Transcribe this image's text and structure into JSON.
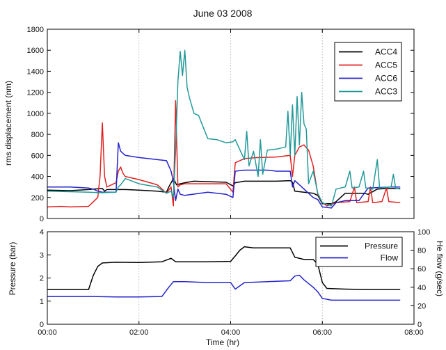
{
  "chart_data": [
    {
      "type": "line",
      "title": "June 03 2008",
      "xlabel": "",
      "ylabel": "rms displacement (nm)",
      "xlim": [
        0,
        8
      ],
      "ylim": [
        0,
        1800
      ],
      "xgrid": true,
      "ygrid": false,
      "yticks": [
        "0",
        "200",
        "400",
        "600",
        "800",
        "1000",
        "1200",
        "1400",
        "1600",
        "1800"
      ],
      "legend_position": "top-right",
      "series": [
        {
          "name": "ACC4",
          "color": "#000000",
          "points": [
            [
              0,
              270
            ],
            [
              0.5,
              265
            ],
            [
              0.9,
              275
            ],
            [
              1.0,
              280
            ],
            [
              1.2,
              285
            ],
            [
              1.25,
              260
            ],
            [
              1.3,
              275
            ],
            [
              1.5,
              275
            ],
            [
              1.7,
              275
            ],
            [
              2.0,
              270
            ],
            [
              2.4,
              260
            ],
            [
              2.6,
              250
            ],
            [
              2.65,
              300
            ],
            [
              2.75,
              380
            ],
            [
              2.82,
              320
            ],
            [
              2.9,
              330
            ],
            [
              3.0,
              340
            ],
            [
              3.2,
              355
            ],
            [
              3.5,
              350
            ],
            [
              3.9,
              345
            ],
            [
              4.05,
              310
            ],
            [
              4.1,
              340
            ],
            [
              4.3,
              355
            ],
            [
              4.8,
              355
            ],
            [
              5.0,
              355
            ],
            [
              5.3,
              360
            ],
            [
              5.35,
              345
            ],
            [
              5.4,
              260
            ],
            [
              5.6,
              250
            ],
            [
              5.8,
              240
            ],
            [
              5.9,
              220
            ],
            [
              6.0,
              140
            ],
            [
              6.2,
              140
            ],
            [
              6.3,
              160
            ],
            [
              6.5,
              240
            ],
            [
              6.9,
              240
            ],
            [
              7.0,
              230
            ],
            [
              7.2,
              280
            ],
            [
              7.4,
              285
            ],
            [
              7.5,
              285
            ],
            [
              7.7,
              285
            ]
          ]
        },
        {
          "name": "ACC5",
          "color": "#e02020",
          "points": [
            [
              0,
              110
            ],
            [
              0.3,
              115
            ],
            [
              0.5,
              110
            ],
            [
              0.9,
              115
            ],
            [
              1.1,
              200
            ],
            [
              1.15,
              400
            ],
            [
              1.2,
              910
            ],
            [
              1.25,
              400
            ],
            [
              1.3,
              300
            ],
            [
              1.5,
              340
            ],
            [
              1.55,
              450
            ],
            [
              1.6,
              490
            ],
            [
              1.65,
              430
            ],
            [
              1.7,
              400
            ],
            [
              2.0,
              370
            ],
            [
              2.4,
              320
            ],
            [
              2.6,
              240
            ],
            [
              2.7,
              300
            ],
            [
              2.75,
              120
            ],
            [
              2.8,
              1120
            ],
            [
              2.85,
              300
            ],
            [
              2.9,
              320
            ],
            [
              3.0,
              330
            ],
            [
              3.5,
              330
            ],
            [
              3.9,
              330
            ],
            [
              4.05,
              250
            ],
            [
              4.1,
              530
            ],
            [
              4.3,
              570
            ],
            [
              4.6,
              580
            ],
            [
              5.0,
              585
            ],
            [
              5.3,
              600
            ],
            [
              5.35,
              400
            ],
            [
              5.4,
              600
            ],
            [
              5.5,
              680
            ],
            [
              5.6,
              700
            ],
            [
              5.7,
              650
            ],
            [
              5.8,
              500
            ],
            [
              5.9,
              230
            ],
            [
              6.0,
              150
            ],
            [
              6.1,
              120
            ],
            [
              6.3,
              150
            ],
            [
              6.6,
              160
            ],
            [
              6.7,
              300
            ],
            [
              6.75,
              150
            ],
            [
              7.0,
              160
            ],
            [
              7.05,
              300
            ],
            [
              7.1,
              150
            ],
            [
              7.3,
              160
            ],
            [
              7.4,
              290
            ],
            [
              7.45,
              160
            ],
            [
              7.7,
              150
            ]
          ]
        },
        {
          "name": "ACC6",
          "color": "#2222cc",
          "points": [
            [
              0,
              300
            ],
            [
              0.5,
              300
            ],
            [
              0.9,
              290
            ],
            [
              1.0,
              280
            ],
            [
              1.1,
              260
            ],
            [
              1.2,
              250
            ],
            [
              1.5,
              250
            ],
            [
              1.55,
              720
            ],
            [
              1.6,
              640
            ],
            [
              1.7,
              600
            ],
            [
              2.0,
              580
            ],
            [
              2.4,
              560
            ],
            [
              2.6,
              550
            ],
            [
              2.7,
              450
            ],
            [
              2.75,
              350
            ],
            [
              2.8,
              170
            ],
            [
              2.85,
              280
            ],
            [
              2.9,
              230
            ],
            [
              3.0,
              220
            ],
            [
              3.5,
              250
            ],
            [
              3.9,
              230
            ],
            [
              4.05,
              200
            ],
            [
              4.1,
              450
            ],
            [
              4.3,
              460
            ],
            [
              4.8,
              460
            ],
            [
              5.0,
              450
            ],
            [
              5.3,
              450
            ],
            [
              5.35,
              300
            ],
            [
              5.4,
              360
            ],
            [
              5.6,
              280
            ],
            [
              5.8,
              200
            ],
            [
              5.9,
              180
            ],
            [
              6.0,
              110
            ],
            [
              6.2,
              100
            ],
            [
              6.3,
              150
            ],
            [
              6.5,
              170
            ],
            [
              6.8,
              170
            ],
            [
              7.0,
              290
            ],
            [
              7.5,
              300
            ],
            [
              7.7,
              300
            ]
          ]
        },
        {
          "name": "ACC3",
          "color": "#229999",
          "points": [
            [
              0,
              260
            ],
            [
              0.5,
              255
            ],
            [
              0.9,
              250
            ],
            [
              1.2,
              245
            ],
            [
              1.5,
              250
            ],
            [
              1.55,
              300
            ],
            [
              1.6,
              320
            ],
            [
              1.7,
              380
            ],
            [
              2.0,
              330
            ],
            [
              2.4,
              300
            ],
            [
              2.6,
              240
            ],
            [
              2.7,
              260
            ],
            [
              2.75,
              200
            ],
            [
              2.8,
              650
            ],
            [
              2.85,
              1300
            ],
            [
              2.9,
              1590
            ],
            [
              2.95,
              1360
            ],
            [
              3.0,
              1600
            ],
            [
              3.05,
              1250
            ],
            [
              3.1,
              1150
            ],
            [
              3.2,
              1000
            ],
            [
              3.3,
              980
            ],
            [
              3.5,
              760
            ],
            [
              3.7,
              750
            ],
            [
              3.9,
              720
            ],
            [
              4.05,
              730
            ],
            [
              4.1,
              750
            ],
            [
              4.3,
              560
            ],
            [
              4.35,
              830
            ],
            [
              4.4,
              500
            ],
            [
              4.5,
              640
            ],
            [
              4.6,
              400
            ],
            [
              4.65,
              750
            ],
            [
              4.7,
              420
            ],
            [
              4.8,
              650
            ],
            [
              5.0,
              660
            ],
            [
              5.2,
              680
            ],
            [
              5.25,
              1020
            ],
            [
              5.3,
              600
            ],
            [
              5.35,
              1080
            ],
            [
              5.4,
              600
            ],
            [
              5.45,
              1160
            ],
            [
              5.5,
              700
            ],
            [
              5.55,
              1200
            ],
            [
              5.6,
              900
            ],
            [
              5.65,
              850
            ],
            [
              5.7,
              330
            ],
            [
              5.8,
              450
            ],
            [
              5.9,
              240
            ],
            [
              6.0,
              150
            ],
            [
              6.2,
              120
            ],
            [
              6.3,
              280
            ],
            [
              6.5,
              300
            ],
            [
              6.6,
              450
            ],
            [
              6.65,
              290
            ],
            [
              6.8,
              300
            ],
            [
              6.9,
              450
            ],
            [
              6.95,
              290
            ],
            [
              7.1,
              280
            ],
            [
              7.2,
              560
            ],
            [
              7.25,
              290
            ],
            [
              7.5,
              300
            ],
            [
              7.55,
              420
            ],
            [
              7.6,
              290
            ],
            [
              7.7,
              280
            ]
          ]
        }
      ]
    },
    {
      "type": "line",
      "title": "",
      "xlabel": "Time (hr)",
      "ylabel": "Pressure (bar)",
      "ylabel_right": "He flow (g/sec)",
      "xlim": [
        0,
        8
      ],
      "ylim": [
        0,
        4
      ],
      "ylim_right": [
        0,
        100
      ],
      "xgrid": true,
      "ygrid": false,
      "xticks": [
        "00:00",
        "02:00",
        "04:00",
        "06:00",
        "08:00"
      ],
      "yticks": [
        "0",
        "1",
        "2",
        "3",
        "4"
      ],
      "yticks_right": [
        "0",
        "20",
        "40",
        "60",
        "80",
        "100"
      ],
      "legend_position": "top-right",
      "series": [
        {
          "name": "Pressure",
          "axis": "left",
          "color": "#000000",
          "points": [
            [
              0,
              1.5
            ],
            [
              0.9,
              1.5
            ],
            [
              1.0,
              2.1
            ],
            [
              1.1,
              2.5
            ],
            [
              1.2,
              2.65
            ],
            [
              1.5,
              2.68
            ],
            [
              2.0,
              2.67
            ],
            [
              2.5,
              2.7
            ],
            [
              2.7,
              2.85
            ],
            [
              2.8,
              2.7
            ],
            [
              3.0,
              2.7
            ],
            [
              3.5,
              2.7
            ],
            [
              4.0,
              2.72
            ],
            [
              4.1,
              2.95
            ],
            [
              4.2,
              3.2
            ],
            [
              4.3,
              3.35
            ],
            [
              4.5,
              3.3
            ],
            [
              5.0,
              3.3
            ],
            [
              5.3,
              3.3
            ],
            [
              5.4,
              2.9
            ],
            [
              5.6,
              2.8
            ],
            [
              5.8,
              2.8
            ],
            [
              5.9,
              2.6
            ],
            [
              6.0,
              1.8
            ],
            [
              6.1,
              1.55
            ],
            [
              6.5,
              1.52
            ],
            [
              7.0,
              1.5
            ],
            [
              7.7,
              1.5
            ]
          ]
        },
        {
          "name": "Flow",
          "axis": "right",
          "color": "#2222cc",
          "points": [
            [
              0,
              30
            ],
            [
              1.0,
              30
            ],
            [
              1.5,
              29.5
            ],
            [
              2.0,
              29.5
            ],
            [
              2.5,
              30
            ],
            [
              2.65,
              40
            ],
            [
              2.75,
              46
            ],
            [
              3.0,
              46
            ],
            [
              3.5,
              45
            ],
            [
              4.0,
              45
            ],
            [
              4.1,
              38
            ],
            [
              4.3,
              45
            ],
            [
              4.8,
              46
            ],
            [
              5.3,
              47
            ],
            [
              5.4,
              52
            ],
            [
              5.5,
              53
            ],
            [
              5.6,
              48
            ],
            [
              5.8,
              40
            ],
            [
              5.9,
              35
            ],
            [
              6.0,
              28
            ],
            [
              6.2,
              26
            ],
            [
              6.5,
              26
            ],
            [
              7.0,
              26
            ],
            [
              7.7,
              26
            ]
          ]
        }
      ]
    }
  ]
}
